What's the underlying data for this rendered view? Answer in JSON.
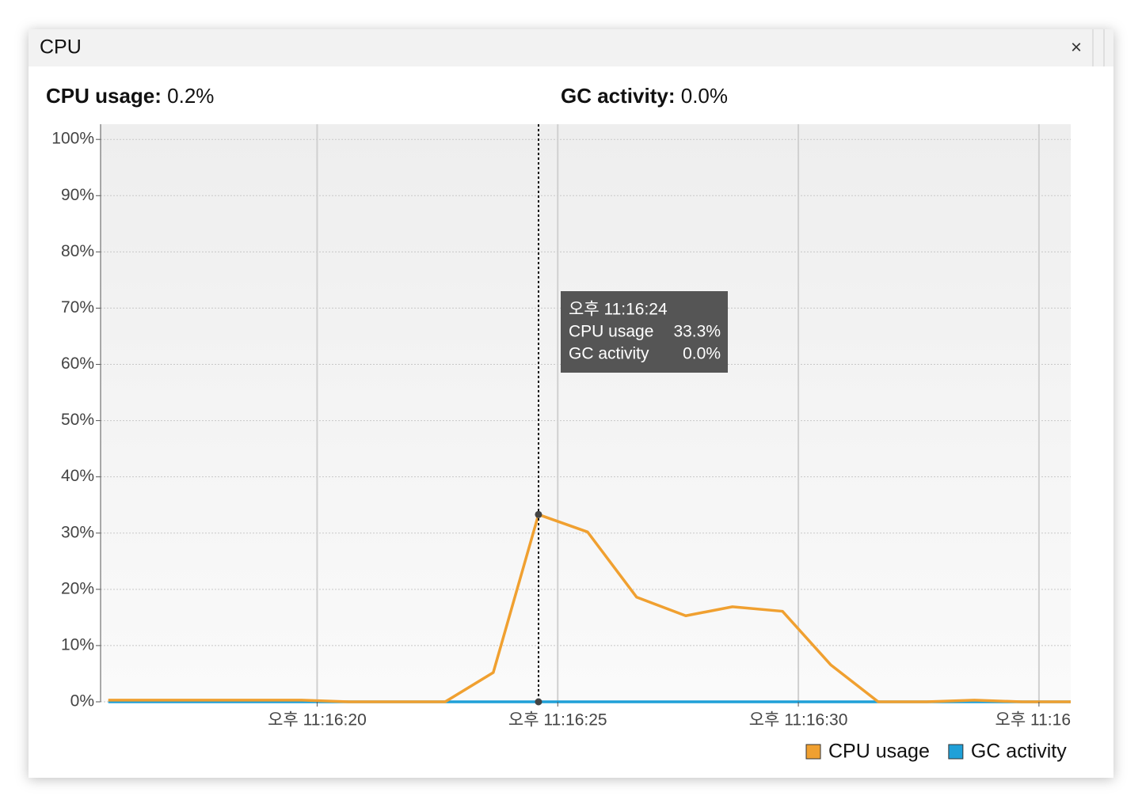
{
  "window": {
    "title": "CPU",
    "close": "×"
  },
  "header": {
    "cpu_label": "CPU usage:",
    "cpu_value": "0.2%",
    "gc_label": "GC activity:",
    "gc_value": "0.0%"
  },
  "tooltip": {
    "time": "오후 11:16:24",
    "cpu_label": "CPU usage",
    "cpu_value": "33.3%",
    "gc_label": "GC activity",
    "gc_value": "0.0%"
  },
  "chart_data": {
    "type": "line",
    "x": [
      15.66,
      16.66,
      17.66,
      18.67,
      19.67,
      20.66,
      21.66,
      22.66,
      23.66,
      24.6,
      25.62,
      26.64,
      27.66,
      28.63,
      29.67,
      30.67,
      31.66,
      32.66,
      33.66,
      34.64,
      35.66
    ],
    "series": [
      {
        "name": "CPU usage",
        "color": "#f0a030",
        "values": [
          0.3,
          0.3,
          0.3,
          0.3,
          0.3,
          0,
          0,
          0,
          5.2,
          33.3,
          30.2,
          18.6,
          15.3,
          16.9,
          16.1,
          6.6,
          0,
          0,
          0.3,
          0,
          0
        ]
      },
      {
        "name": "GC activity",
        "color": "#1fa0d8",
        "values": [
          0,
          0,
          0,
          0,
          0,
          0,
          0,
          0,
          0,
          0,
          0,
          0,
          0,
          0,
          0,
          0,
          0,
          0,
          0,
          0,
          0
        ]
      }
    ],
    "xlim": [
      15.5,
      35.66
    ],
    "xticks": [
      {
        "value": 20,
        "label": "오후 11:16:20"
      },
      {
        "value": 25,
        "label": "오후 11:16:25"
      },
      {
        "value": 30,
        "label": "오후 11:16:30"
      },
      {
        "value": 35,
        "label": "오후 11:16"
      }
    ],
    "ylim": [
      0,
      102.7
    ],
    "yticks": [
      {
        "value": 0,
        "label": "0%"
      },
      {
        "value": 10,
        "label": "10%"
      },
      {
        "value": 20,
        "label": "20%"
      },
      {
        "value": 30,
        "label": "30%"
      },
      {
        "value": 40,
        "label": "40%"
      },
      {
        "value": 50,
        "label": "50%"
      },
      {
        "value": 60,
        "label": "60%"
      },
      {
        "value": 70,
        "label": "70%"
      },
      {
        "value": 80,
        "label": "80%"
      },
      {
        "value": 90,
        "label": "90%"
      },
      {
        "value": 100,
        "label": "100%"
      }
    ],
    "grid": true
  }
}
